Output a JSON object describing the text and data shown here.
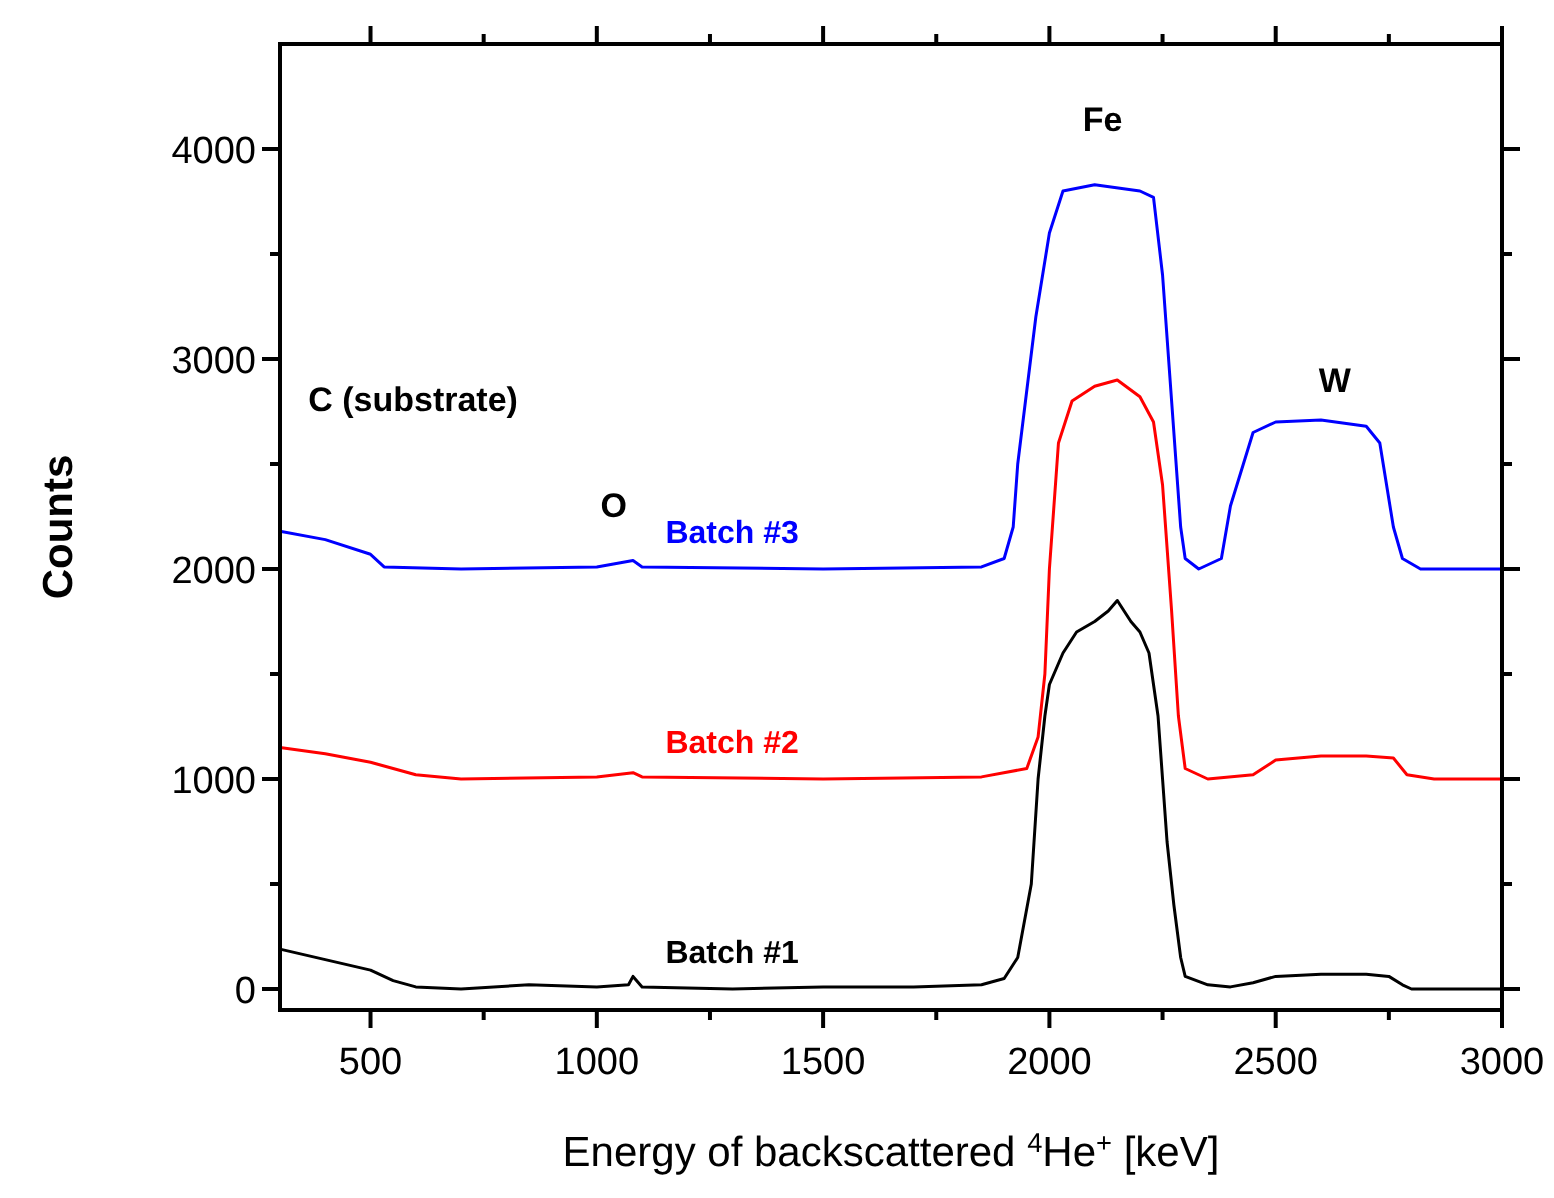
{
  "chart_data": {
    "type": "line",
    "xlabel": "Energy of backscattered $^{4}$He$^{+}$ [keV]",
    "ylabel": "Counts",
    "xlim": [
      300,
      3000
    ],
    "ylim": [
      -100,
      4500
    ],
    "xticks": [
      500,
      {
        "value": 750,
        "label": null
      },
      1000,
      {
        "value": 1250,
        "label": null
      },
      1500,
      {
        "value": 1750,
        "label": null
      },
      2000,
      {
        "value": 2250,
        "label": null
      },
      2500,
      {
        "value": 2750,
        "label": null
      },
      3000
    ],
    "yticks": [
      0,
      {
        "value": 500,
        "label": null
      },
      1000,
      {
        "value": 1500,
        "label": null
      },
      2000,
      {
        "value": 2500,
        "label": null
      },
      3000,
      {
        "value": 3500,
        "label": null
      },
      4000
    ],
    "grid": false,
    "marker": "none",
    "line_style": "solid",
    "annotations": [
      "C (substrate)",
      "O",
      "Fe",
      "W"
    ],
    "series": [
      {
        "name": "Batch #1",
        "color": "#000000",
        "x": [
          300,
          400,
          500,
          550,
          600,
          700,
          850,
          1000,
          1070,
          1080,
          1100,
          1300,
          1500,
          1700,
          1850,
          1900,
          1930,
          1960,
          1975,
          1990,
          2000,
          2030,
          2060,
          2100,
          2130,
          2150,
          2180,
          2200,
          2220,
          2240,
          2250,
          2260,
          2275,
          2290,
          2300,
          2350,
          2400,
          2450,
          2500,
          2600,
          2700,
          2750,
          2780,
          2800,
          3000
        ],
        "values": [
          190,
          140,
          90,
          40,
          10,
          0,
          20,
          10,
          20,
          60,
          10,
          0,
          10,
          10,
          20,
          50,
          150,
          500,
          1000,
          1300,
          1450,
          1600,
          1700,
          1750,
          1800,
          1850,
          1750,
          1700,
          1600,
          1300,
          1000,
          700,
          400,
          150,
          60,
          20,
          10,
          30,
          60,
          70,
          70,
          60,
          20,
          0,
          0
        ]
      },
      {
        "name": "Batch #2",
        "color": "#ff0000",
        "x": [
          300,
          400,
          500,
          600,
          700,
          1000,
          1080,
          1100,
          1500,
          1850,
          1950,
          1975,
          1990,
          2000,
          2020,
          2050,
          2100,
          2150,
          2200,
          2230,
          2250,
          2270,
          2285,
          2300,
          2350,
          2450,
          2500,
          2600,
          2700,
          2760,
          2790,
          2850,
          3000
        ],
        "values": [
          1150,
          1120,
          1080,
          1020,
          1000,
          1010,
          1030,
          1010,
          1000,
          1010,
          1050,
          1200,
          1500,
          2000,
          2600,
          2800,
          2870,
          2900,
          2820,
          2700,
          2400,
          1800,
          1300,
          1050,
          1000,
          1020,
          1090,
          1110,
          1110,
          1100,
          1020,
          1000,
          1000
        ]
      },
      {
        "name": "Batch #3",
        "color": "#0000ff",
        "x": [
          300,
          400,
          500,
          530,
          700,
          1000,
          1080,
          1100,
          1500,
          1850,
          1900,
          1920,
          1930,
          1970,
          2000,
          2030,
          2100,
          2200,
          2230,
          2250,
          2270,
          2290,
          2300,
          2330,
          2380,
          2400,
          2450,
          2500,
          2600,
          2700,
          2730,
          2760,
          2780,
          2820,
          3000
        ],
        "values": [
          2180,
          2140,
          2070,
          2010,
          2000,
          2010,
          2040,
          2010,
          2000,
          2010,
          2050,
          2200,
          2500,
          3200,
          3600,
          3800,
          3830,
          3800,
          3770,
          3400,
          2800,
          2200,
          2050,
          2000,
          2050,
          2300,
          2650,
          2700,
          2710,
          2680,
          2600,
          2200,
          2050,
          2000,
          2000
        ]
      }
    ]
  }
}
